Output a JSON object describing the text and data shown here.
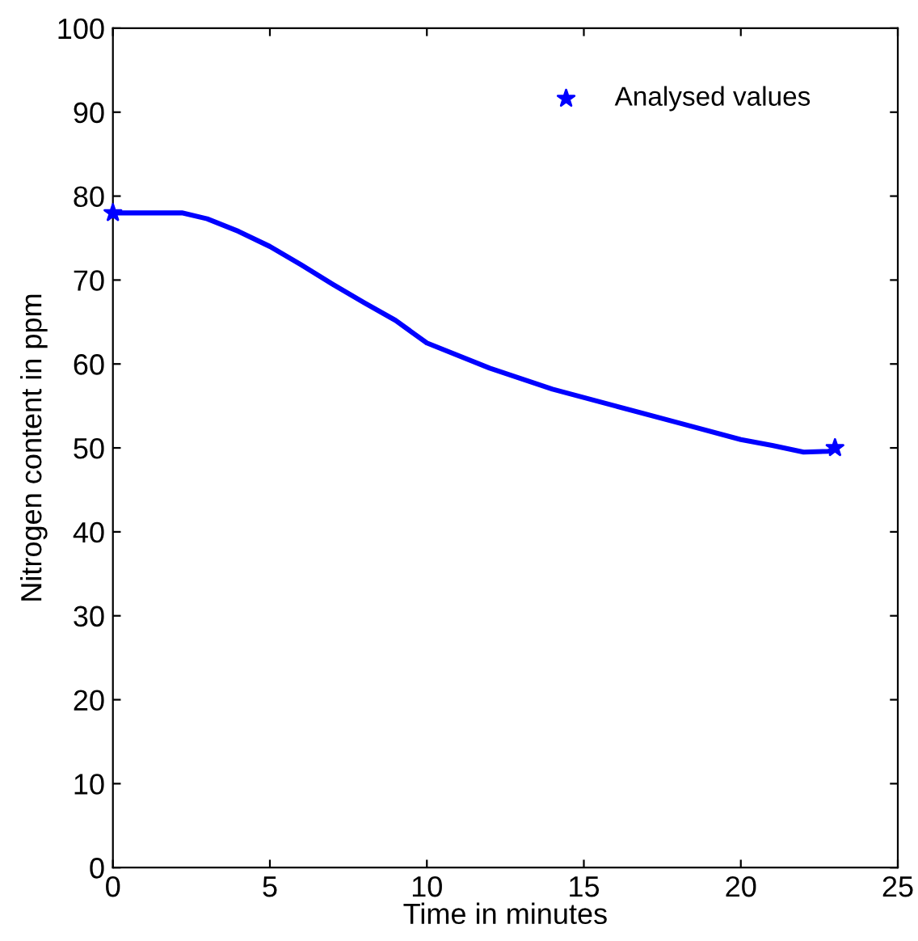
{
  "chart_data": {
    "type": "line",
    "xlabel": "Time in minutes",
    "ylabel": "Nitrogen content in ppm",
    "xlim": [
      0,
      25
    ],
    "ylim": [
      0,
      100
    ],
    "xticks": [
      0,
      5,
      10,
      15,
      20,
      25
    ],
    "yticks": [
      0,
      10,
      20,
      30,
      40,
      50,
      60,
      70,
      80,
      90,
      100
    ],
    "grid": false,
    "legend": "top right",
    "series": [
      {
        "color": "#0000ff",
        "marker": "none",
        "x": [
          0,
          1,
          2.2,
          3,
          4,
          5,
          6,
          7,
          8,
          9,
          10,
          12,
          14,
          16,
          18,
          20,
          21,
          22,
          22.8,
          23
        ],
        "values": [
          78,
          78,
          78,
          77.3,
          75.8,
          74,
          71.8,
          69.5,
          67.3,
          65.2,
          62.5,
          59.5,
          57,
          55,
          53,
          51,
          50.3,
          49.5,
          49.6,
          50
        ]
      },
      {
        "type": "scatter",
        "name": "Analysed values",
        "color": "#0000ff",
        "marker": "star",
        "x": [
          0,
          23
        ],
        "values": [
          78,
          50
        ]
      }
    ]
  }
}
